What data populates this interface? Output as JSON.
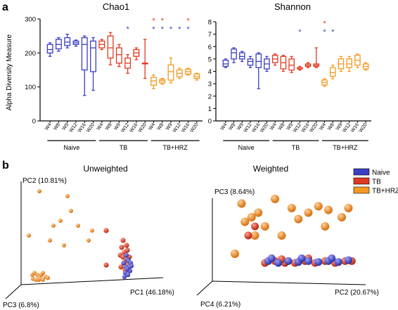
{
  "panel_labels": {
    "a": "a",
    "b": "b"
  },
  "colors": {
    "naive": "#3b3fc4",
    "tb": "#e03a22",
    "tbhrz": "#f59a23"
  },
  "chart_data": [
    {
      "type": "box",
      "title": "Chao1",
      "ylabel": "Alpha Diversity Measure",
      "ylim": [
        0,
        300
      ],
      "yticks": [
        0,
        100,
        200,
        300
      ],
      "categories": [
        "W4",
        "W8",
        "W9",
        "W12",
        "W16",
        "W20",
        "W4",
        "W8",
        "W9",
        "W12",
        "W16",
        "W20",
        "W4",
        "W8",
        "W9",
        "W12",
        "W16",
        "W20"
      ],
      "groups": [
        {
          "name": "Naive",
          "start": 0,
          "end": 5
        },
        {
          "name": "TB",
          "start": 6,
          "end": 11
        },
        {
          "name": "TB+HRZ",
          "start": 12,
          "end": 17
        }
      ],
      "boxes": [
        {
          "group": "naive",
          "min": 190,
          "q1": 200,
          "median": 210,
          "q3": 225,
          "max": 230
        },
        {
          "group": "naive",
          "min": 205,
          "q1": 212,
          "median": 225,
          "q3": 240,
          "max": 245
        },
        {
          "group": "naive",
          "min": 215,
          "q1": 222,
          "median": 232,
          "q3": 245,
          "max": 255
        },
        {
          "group": "naive",
          "min": 220,
          "q1": 225,
          "median": 230,
          "q3": 235,
          "max": 238
        },
        {
          "group": "naive",
          "min": 75,
          "q1": 150,
          "median": 225,
          "q3": 245,
          "max": 250
        },
        {
          "group": "naive",
          "min": 90,
          "q1": 145,
          "median": 215,
          "q3": 235,
          "max": 245
        },
        {
          "group": "tb",
          "min": 210,
          "q1": 215,
          "median": 225,
          "q3": 235,
          "max": 240
        },
        {
          "group": "tb",
          "min": 165,
          "q1": 185,
          "median": 215,
          "q3": 250,
          "max": 260
        },
        {
          "group": "tb",
          "min": 160,
          "q1": 170,
          "median": 195,
          "q3": 215,
          "max": 225
        },
        {
          "group": "tb",
          "min": 140,
          "q1": 155,
          "median": 170,
          "q3": 185,
          "max": 195
        },
        {
          "group": "tb",
          "min": 180,
          "q1": 190,
          "median": 200,
          "q3": 210,
          "max": 215
        },
        {
          "group": "tb",
          "min": 125,
          "q1": 170,
          "median": 170,
          "q3": 170,
          "max": 240
        },
        {
          "group": "tbhrz",
          "min": 95,
          "q1": 105,
          "median": 118,
          "q3": 128,
          "max": 135
        },
        {
          "group": "tbhrz",
          "min": 108,
          "q1": 112,
          "median": 118,
          "q3": 122,
          "max": 125
        },
        {
          "group": "tbhrz",
          "min": 112,
          "q1": 120,
          "median": 145,
          "q3": 165,
          "max": 185
        },
        {
          "group": "tbhrz",
          "min": 125,
          "q1": 130,
          "median": 140,
          "q3": 150,
          "max": 155
        },
        {
          "group": "tbhrz",
          "min": 135,
          "q1": 138,
          "median": 145,
          "q3": 152,
          "max": 155
        },
        {
          "group": "tbhrz",
          "min": 120,
          "q1": 125,
          "median": 130,
          "q3": 138,
          "max": 140
        }
      ],
      "significance": [
        {
          "index": 9,
          "row": "blue"
        },
        {
          "index": 12,
          "row": "red"
        },
        {
          "index": 12,
          "row": "blue"
        },
        {
          "index": 13,
          "row": "red"
        },
        {
          "index": 13,
          "row": "blue"
        },
        {
          "index": 14,
          "row": "blue"
        },
        {
          "index": 15,
          "row": "blue"
        },
        {
          "index": 16,
          "row": "red"
        },
        {
          "index": 16,
          "row": "blue"
        }
      ]
    },
    {
      "type": "box",
      "title": "Shannon",
      "ylim": [
        0,
        8
      ],
      "yticks": [
        0,
        1,
        2,
        3,
        4,
        5,
        6,
        7,
        8
      ],
      "categories": [
        "W4",
        "W8",
        "W9",
        "W12",
        "W16",
        "W20",
        "W4",
        "W8",
        "W9",
        "W12",
        "W16",
        "W20",
        "W4",
        "W8",
        "W9",
        "W12",
        "W16",
        "W20"
      ],
      "groups": [
        {
          "name": "Naive",
          "start": 0,
          "end": 5
        },
        {
          "name": "TB",
          "start": 6,
          "end": 11
        },
        {
          "name": "TB+HRZ",
          "start": 12,
          "end": 17
        }
      ],
      "boxes": [
        {
          "group": "naive",
          "min": 4.3,
          "q1": 4.4,
          "median": 4.6,
          "q3": 4.9,
          "max": 5.0
        },
        {
          "group": "naive",
          "min": 4.7,
          "q1": 5.0,
          "median": 5.5,
          "q3": 5.8,
          "max": 5.9
        },
        {
          "group": "naive",
          "min": 4.8,
          "q1": 5.0,
          "median": 5.2,
          "q3": 5.5,
          "max": 5.6
        },
        {
          "group": "naive",
          "min": 4.3,
          "q1": 4.5,
          "median": 4.8,
          "q3": 5.0,
          "max": 5.2
        },
        {
          "group": "naive",
          "min": 2.6,
          "q1": 4.3,
          "median": 4.8,
          "q3": 5.4,
          "max": 5.5
        },
        {
          "group": "naive",
          "min": 4.0,
          "q1": 4.2,
          "median": 4.6,
          "q3": 5.0,
          "max": 5.2
        },
        {
          "group": "tb",
          "min": 4.5,
          "q1": 4.7,
          "median": 5.0,
          "q3": 5.3,
          "max": 5.4
        },
        {
          "group": "tb",
          "min": 4.0,
          "q1": 4.2,
          "median": 4.7,
          "q3": 5.2,
          "max": 5.3
        },
        {
          "group": "tb",
          "min": 3.9,
          "q1": 4.1,
          "median": 4.5,
          "q3": 5.0,
          "max": 5.2
        },
        {
          "group": "tb",
          "min": 4.1,
          "q1": 4.2,
          "median": 4.2,
          "q3": 4.3,
          "max": 4.4
        },
        {
          "group": "tb",
          "min": 4.3,
          "q1": 4.4,
          "median": 4.5,
          "q3": 4.6,
          "max": 4.7
        },
        {
          "group": "tb",
          "min": 4.3,
          "q1": 4.4,
          "median": 4.5,
          "q3": 4.6,
          "max": 5.9
        },
        {
          "group": "tbhrz",
          "min": 2.8,
          "q1": 2.9,
          "median": 3.1,
          "q3": 3.3,
          "max": 3.4
        },
        {
          "group": "tbhrz",
          "min": 3.4,
          "q1": 3.6,
          "median": 3.9,
          "q3": 4.3,
          "max": 4.5
        },
        {
          "group": "tbhrz",
          "min": 4.0,
          "q1": 4.2,
          "median": 4.6,
          "q3": 5.0,
          "max": 5.2
        },
        {
          "group": "tbhrz",
          "min": 4.0,
          "q1": 4.3,
          "median": 4.6,
          "q3": 5.0,
          "max": 5.2
        },
        {
          "group": "tbhrz",
          "min": 4.3,
          "q1": 4.5,
          "median": 4.9,
          "q3": 5.3,
          "max": 5.4
        },
        {
          "group": "tbhrz",
          "min": 4.1,
          "q1": 4.2,
          "median": 4.4,
          "q3": 4.6,
          "max": 4.7
        }
      ],
      "significance": [
        {
          "index": 9,
          "row": "blue"
        },
        {
          "index": 12,
          "row": "red"
        },
        {
          "index": 12,
          "row": "blue"
        },
        {
          "index": 13,
          "row": "blue"
        }
      ]
    },
    {
      "type": "scatter3d",
      "title": "Unweighted",
      "axes": [
        "PC1 (46.18%)",
        "PC2 (10.81%)",
        "PC3 (6.8%)"
      ],
      "points": {
        "tbhrz": [
          [
            -0.9,
            0.5
          ],
          [
            -0.75,
            0.95
          ],
          [
            -0.55,
            0.6
          ],
          [
            -0.35,
            0.9
          ],
          [
            -0.3,
            0.75
          ],
          [
            -0.2,
            0.6
          ],
          [
            -0.05,
            0.45
          ],
          [
            -0.45,
            0.65
          ],
          [
            -0.6,
            0.45
          ],
          [
            -0.85,
            0.1
          ],
          [
            -0.82,
            0.12
          ],
          [
            -0.78,
            0.1
          ],
          [
            -0.75,
            0.08
          ],
          [
            -0.72,
            0.1
          ],
          [
            -0.7,
            0.12
          ],
          [
            -0.84,
            0.06
          ],
          [
            -0.8,
            0.05
          ],
          [
            -0.76,
            0.05
          ],
          [
            -0.74,
            0.06
          ],
          [
            -0.7,
            0.05
          ],
          [
            -0.66,
            0.08
          ],
          [
            -0.63,
            0.07
          ],
          [
            -0.4,
            0.4
          ],
          [
            0.0,
            0.55
          ]
        ],
        "tb": [
          [
            0.2,
            0.55
          ],
          [
            0.4,
            0.3
          ],
          [
            0.42,
            0.38
          ],
          [
            0.44,
            0.28
          ],
          [
            0.46,
            0.33
          ],
          [
            0.48,
            0.25
          ],
          [
            0.5,
            0.35
          ],
          [
            0.45,
            0.22
          ],
          [
            0.41,
            0.18
          ],
          [
            0.47,
            0.15
          ],
          [
            0.51,
            0.2
          ],
          [
            0.53,
            0.28
          ],
          [
            0.2,
            0.2
          ],
          [
            0.44,
            0.45
          ],
          [
            0.49,
            0.4
          ],
          [
            0.52,
            0.15
          ]
        ],
        "naive": [
          [
            0.45,
            0.22
          ],
          [
            0.48,
            0.18
          ],
          [
            0.5,
            0.26
          ],
          [
            0.52,
            0.24
          ],
          [
            0.47,
            0.12
          ],
          [
            0.53,
            0.18
          ],
          [
            0.55,
            0.22
          ],
          [
            0.49,
            0.3
          ],
          [
            0.46,
            0.08
          ],
          [
            0.51,
            0.1
          ],
          [
            0.54,
            0.14
          ],
          [
            0.5,
            0.16
          ],
          [
            0.56,
            0.19
          ]
        ]
      }
    },
    {
      "type": "scatter3d",
      "title": "Weighted",
      "axes": [
        "PC2 (20.67%)",
        "PC3 (8.64%)",
        "PC4 (6.21%)"
      ],
      "legend": [
        "Naive",
        "TB",
        "TB+HRZ"
      ],
      "points": {
        "tbhrz": [
          [
            -0.7,
            0.85
          ],
          [
            -0.65,
            0.65
          ],
          [
            -0.55,
            0.7
          ],
          [
            -0.45,
            0.75
          ],
          [
            -0.35,
            0.6
          ],
          [
            -0.5,
            0.5
          ],
          [
            -0.2,
            0.9
          ],
          [
            0.05,
            0.8
          ],
          [
            0.15,
            0.68
          ],
          [
            0.3,
            0.75
          ],
          [
            0.45,
            0.82
          ],
          [
            0.6,
            0.78
          ],
          [
            0.55,
            0.6
          ],
          [
            0.8,
            0.7
          ],
          [
            0.9,
            0.8
          ],
          [
            -0.8,
            0.3
          ],
          [
            -0.1,
            0.5
          ]
        ],
        "tb": [
          [
            -0.6,
            0.5
          ],
          [
            -0.5,
            0.6
          ],
          [
            -0.35,
            0.2
          ],
          [
            -0.2,
            0.22
          ],
          [
            -0.05,
            0.2
          ],
          [
            0.1,
            0.2
          ],
          [
            0.25,
            0.22
          ],
          [
            0.4,
            0.2
          ],
          [
            0.55,
            0.22
          ],
          [
            0.7,
            0.2
          ],
          [
            0.85,
            0.22
          ],
          [
            0.95,
            0.22
          ],
          [
            -0.1,
            0.24
          ],
          [
            0.3,
            0.25
          ]
        ],
        "naive": [
          [
            -0.3,
            0.22
          ],
          [
            -0.15,
            0.2
          ],
          [
            0.0,
            0.22
          ],
          [
            0.15,
            0.21
          ],
          [
            0.3,
            0.22
          ],
          [
            0.45,
            0.21
          ],
          [
            0.6,
            0.22
          ],
          [
            0.75,
            0.21
          ],
          [
            0.9,
            0.23
          ],
          [
            -0.25,
            0.25
          ],
          [
            0.2,
            0.25
          ],
          [
            0.65,
            0.25
          ]
        ]
      }
    }
  ]
}
